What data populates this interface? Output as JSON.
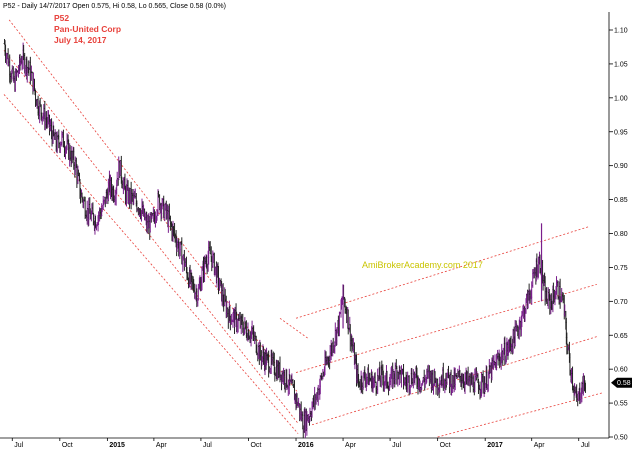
{
  "header": {
    "info_line": "P52 - Daily 14/7/2017 Open 0.575, Hi 0.58, Lo 0.565, Close 0.58 (0.0%)"
  },
  "title_block": {
    "ticker": "P52",
    "company": "Pan-United Corp",
    "date": "July 14, 2017"
  },
  "watermark": "AmiBrokerAcademy.com 2017",
  "price_tag": "0.58",
  "colors": {
    "up_bar": "#7a1f8c",
    "down_bar": "#222222",
    "channel": "#e8423c",
    "watermark": "#c9c400",
    "price_tag_bg": "#000000"
  },
  "chart_data": {
    "type": "line",
    "subtype": "ohlc-bars",
    "title": "P52 Pan-United Corp July 14, 2017",
    "xlim": [
      "2014-06-15",
      "2017-08-15"
    ],
    "ylim": [
      0.5,
      1.12
    ],
    "y_ticks": [
      0.5,
      0.55,
      0.6,
      0.65,
      0.7,
      0.75,
      0.8,
      0.85,
      0.9,
      0.95,
      1.0,
      1.05,
      1.1
    ],
    "y_tick_labels": [
      "0.50",
      "0.55",
      "0.60",
      "0.65",
      "0.70",
      "0.75",
      "0.80",
      "0.85",
      "0.90",
      "0.95",
      "1.00",
      "1.05",
      "1.10"
    ],
    "x_ticks": [
      {
        "date": "2014-07-01",
        "label": "Jul",
        "bold": false
      },
      {
        "date": "2014-10-01",
        "label": "Oct",
        "bold": false
      },
      {
        "date": "2015-01-01",
        "label": "2015",
        "bold": true
      },
      {
        "date": "2015-04-01",
        "label": "Apr",
        "bold": false
      },
      {
        "date": "2015-07-01",
        "label": "Jul",
        "bold": false
      },
      {
        "date": "2015-10-01",
        "label": "Oct",
        "bold": false
      },
      {
        "date": "2016-01-01",
        "label": "2016",
        "bold": true
      },
      {
        "date": "2016-04-01",
        "label": "Apr",
        "bold": false
      },
      {
        "date": "2016-07-01",
        "label": "Jul",
        "bold": false
      },
      {
        "date": "2016-10-01",
        "label": "Oct",
        "bold": false
      },
      {
        "date": "2017-01-01",
        "label": "2017",
        "bold": true
      },
      {
        "date": "2017-04-01",
        "label": "Apr",
        "bold": false
      },
      {
        "date": "2017-07-01",
        "label": "Jul",
        "bold": false
      }
    ],
    "price_path": [
      [
        "2014-06-16",
        1.08
      ],
      [
        "2014-06-25",
        1.05
      ],
      [
        "2014-07-05",
        1.02
      ],
      [
        "2014-07-20",
        1.06
      ],
      [
        "2014-08-05",
        1.04
      ],
      [
        "2014-08-20",
        0.99
      ],
      [
        "2014-09-10",
        0.96
      ],
      [
        "2014-09-25",
        0.93
      ],
      [
        "2014-10-05",
        0.94
      ],
      [
        "2014-10-20",
        0.92
      ],
      [
        "2014-11-01",
        0.9
      ],
      [
        "2014-11-10",
        0.86
      ],
      [
        "2014-11-25",
        0.83
      ],
      [
        "2014-12-10",
        0.82
      ],
      [
        "2014-12-25",
        0.84
      ],
      [
        "2015-01-05",
        0.87
      ],
      [
        "2015-01-15",
        0.86
      ],
      [
        "2015-01-25",
        0.9
      ],
      [
        "2015-02-05",
        0.86
      ],
      [
        "2015-02-20",
        0.85
      ],
      [
        "2015-03-05",
        0.84
      ],
      [
        "2015-03-20",
        0.81
      ],
      [
        "2015-04-01",
        0.82
      ],
      [
        "2015-04-10",
        0.85
      ],
      [
        "2015-04-25",
        0.83
      ],
      [
        "2015-05-10",
        0.8
      ],
      [
        "2015-05-25",
        0.77
      ],
      [
        "2015-06-10",
        0.73
      ],
      [
        "2015-06-25",
        0.71
      ],
      [
        "2015-07-10",
        0.76
      ],
      [
        "2015-07-20",
        0.77
      ],
      [
        "2015-08-01",
        0.74
      ],
      [
        "2015-08-15",
        0.7
      ],
      [
        "2015-08-25",
        0.68
      ],
      [
        "2015-09-10",
        0.67
      ],
      [
        "2015-09-25",
        0.66
      ],
      [
        "2015-10-10",
        0.65
      ],
      [
        "2015-10-25",
        0.62
      ],
      [
        "2015-11-10",
        0.61
      ],
      [
        "2015-11-25",
        0.6
      ],
      [
        "2015-12-10",
        0.59
      ],
      [
        "2015-12-25",
        0.57
      ],
      [
        "2016-01-05",
        0.55
      ],
      [
        "2016-01-15",
        0.52
      ],
      [
        "2016-01-25",
        0.53
      ],
      [
        "2016-02-10",
        0.56
      ],
      [
        "2016-02-25",
        0.6
      ],
      [
        "2016-03-10",
        0.63
      ],
      [
        "2016-03-25",
        0.67
      ],
      [
        "2016-04-01",
        0.71
      ],
      [
        "2016-04-10",
        0.68
      ],
      [
        "2016-04-20",
        0.63
      ],
      [
        "2016-05-01",
        0.58
      ],
      [
        "2016-05-15",
        0.59
      ],
      [
        "2016-06-01",
        0.58
      ],
      [
        "2016-06-15",
        0.59
      ],
      [
        "2016-07-01",
        0.58
      ],
      [
        "2016-07-15",
        0.6
      ],
      [
        "2016-08-01",
        0.58
      ],
      [
        "2016-08-15",
        0.59
      ],
      [
        "2016-09-01",
        0.58
      ],
      [
        "2016-09-15",
        0.59
      ],
      [
        "2016-10-01",
        0.58
      ],
      [
        "2016-10-15",
        0.59
      ],
      [
        "2016-11-01",
        0.58
      ],
      [
        "2016-11-15",
        0.59
      ],
      [
        "2016-12-01",
        0.58
      ],
      [
        "2016-12-15",
        0.58
      ],
      [
        "2017-01-01",
        0.58
      ],
      [
        "2017-01-15",
        0.6
      ],
      [
        "2017-02-01",
        0.62
      ],
      [
        "2017-02-15",
        0.63
      ],
      [
        "2017-03-01",
        0.65
      ],
      [
        "2017-03-15",
        0.68
      ],
      [
        "2017-04-01",
        0.72
      ],
      [
        "2017-04-10",
        0.75
      ],
      [
        "2017-04-18",
        0.76
      ],
      [
        "2017-04-25",
        0.72
      ],
      [
        "2017-05-01",
        0.7
      ],
      [
        "2017-05-10",
        0.7
      ],
      [
        "2017-05-20",
        0.72
      ],
      [
        "2017-06-01",
        0.7
      ],
      [
        "2017-06-10",
        0.63
      ],
      [
        "2017-06-20",
        0.58
      ],
      [
        "2017-06-28",
        0.55
      ],
      [
        "2017-07-05",
        0.57
      ],
      [
        "2017-07-14",
        0.58
      ]
    ],
    "spikes": [
      {
        "date": "2017-04-20",
        "high": 0.815,
        "low": 0.7
      },
      {
        "date": "2016-04-01",
        "high": 0.725,
        "low": 0.66
      }
    ],
    "last": {
      "date": "2017-07-14",
      "open": 0.575,
      "high": 0.58,
      "low": 0.565,
      "close": 0.58
    },
    "channel_lines": [
      {
        "start": [
          "2014-06-25",
          1.115
        ],
        "end": [
          "2016-01-05",
          0.565
        ]
      },
      {
        "start": [
          "2014-06-15",
          1.07
        ],
        "end": [
          "2016-01-05",
          0.52
        ]
      },
      {
        "start": [
          "2014-06-15",
          1.005
        ],
        "end": [
          "2016-01-05",
          0.505
        ]
      },
      {
        "start": [
          "2015-12-01",
          0.675
        ],
        "end": [
          "2016-01-25",
          0.645
        ]
      },
      {
        "start": [
          "2016-01-01",
          0.675
        ],
        "end": [
          "2017-07-20",
          0.81
        ]
      },
      {
        "start": [
          "2016-01-01",
          0.595
        ],
        "end": [
          "2017-08-05",
          0.725
        ]
      },
      {
        "start": [
          "2016-02-01",
          0.518
        ],
        "end": [
          "2017-08-05",
          0.648
        ]
      },
      {
        "start": [
          "2016-10-01",
          0.5
        ],
        "end": [
          "2017-08-15",
          0.565
        ]
      }
    ]
  }
}
